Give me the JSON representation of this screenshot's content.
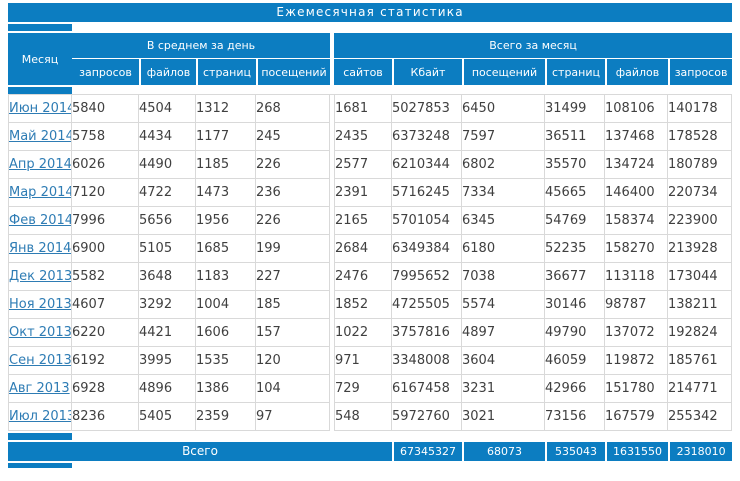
{
  "title": "Ежемесячная статистика",
  "colors": {
    "header_blue": "#0c7dc1",
    "link_blue": "#2e7cb4",
    "grid_border": "#d9d9d9",
    "data_text": "#404040",
    "header_text": "#ffffff"
  },
  "chart_data": {
    "type": "table",
    "title": "Ежемесячная статистика",
    "month_column_header": "Месяц",
    "column_groups": [
      {
        "label": "В среднем за день",
        "columns": [
          "запросов",
          "файлов",
          "страниц",
          "посещений"
        ]
      },
      {
        "label": "Всего за месяц",
        "columns": [
          "сайтов",
          "Кбайт",
          "посещений",
          "страниц",
          "файлов",
          "запросов"
        ]
      }
    ],
    "rows": [
      {
        "month": "Июн 2014",
        "values": [
          5840,
          4504,
          1312,
          268,
          1681,
          5027853,
          6450,
          31499,
          108106,
          140178
        ]
      },
      {
        "month": "Май 2014",
        "values": [
          5758,
          4434,
          1177,
          245,
          2435,
          6373248,
          7597,
          36511,
          137468,
          178528
        ]
      },
      {
        "month": "Апр 2014",
        "values": [
          6026,
          4490,
          1185,
          226,
          2577,
          6210344,
          6802,
          35570,
          134724,
          180789
        ]
      },
      {
        "month": "Мар 2014",
        "values": [
          7120,
          4722,
          1473,
          236,
          2391,
          5716245,
          7334,
          45665,
          146400,
          220734
        ]
      },
      {
        "month": "Фев 2014",
        "values": [
          7996,
          5656,
          1956,
          226,
          2165,
          5701054,
          6345,
          54769,
          158374,
          223900
        ]
      },
      {
        "month": "Янв 2014",
        "values": [
          6900,
          5105,
          1685,
          199,
          2684,
          6349384,
          6180,
          52235,
          158270,
          213928
        ]
      },
      {
        "month": "Дек 2013",
        "values": [
          5582,
          3648,
          1183,
          227,
          2476,
          7995652,
          7038,
          36677,
          113118,
          173044
        ]
      },
      {
        "month": "Ноя 2013",
        "values": [
          4607,
          3292,
          1004,
          185,
          1852,
          4725505,
          5574,
          30146,
          98787,
          138211
        ]
      },
      {
        "month": "Окт 2013",
        "values": [
          6220,
          4421,
          1606,
          157,
          1022,
          3757816,
          4897,
          49790,
          137072,
          192824
        ]
      },
      {
        "month": "Сен 2013",
        "values": [
          6192,
          3995,
          1535,
          120,
          971,
          3348008,
          3604,
          46059,
          119872,
          185761
        ]
      },
      {
        "month": "Авг 2013",
        "values": [
          6928,
          4896,
          1386,
          104,
          729,
          6167458,
          3231,
          42966,
          151780,
          214771
        ]
      },
      {
        "month": "Июл 2013",
        "values": [
          8236,
          5405,
          2359,
          97,
          548,
          5972760,
          3021,
          73156,
          167579,
          255342
        ]
      }
    ],
    "totals": {
      "label": "Всего",
      "values": [
        67345327,
        68073,
        535043,
        1631550,
        2318010
      ]
    }
  }
}
